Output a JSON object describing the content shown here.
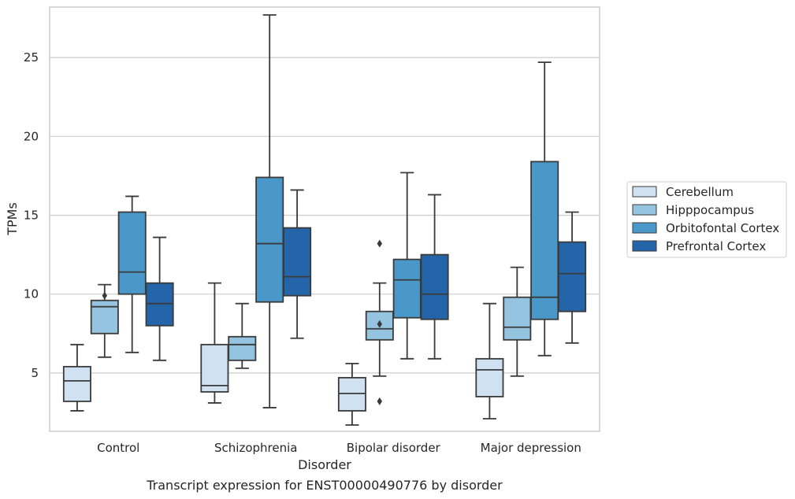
{
  "chart_data": {
    "type": "boxplot",
    "title": "",
    "caption": "Transcript expression for ENST00000490776 by disorder",
    "xlabel": "Disorder",
    "ylabel": "TPMs",
    "ylim": [
      1.3,
      28.2
    ],
    "yticks": [
      5,
      10,
      15,
      20,
      25
    ],
    "grid": "horizontal",
    "legend_position": "right",
    "categories": [
      "Control",
      "Schizophrenia",
      "Bipolar disorder",
      "Major depression"
    ],
    "series": [
      {
        "name": "Cerebellum",
        "color": "#d0e1f2",
        "boxes": [
          {
            "whislo": 2.6,
            "q1": 3.2,
            "med": 4.5,
            "q3": 5.4,
            "whishi": 6.8,
            "fliers": []
          },
          {
            "whislo": 3.1,
            "q1": 3.8,
            "med": 4.2,
            "q3": 6.8,
            "whishi": 10.7,
            "fliers": []
          },
          {
            "whislo": 1.7,
            "q1": 2.6,
            "med": 3.7,
            "q3": 4.7,
            "whishi": 5.6,
            "fliers": []
          },
          {
            "whislo": 2.1,
            "q1": 3.5,
            "med": 5.2,
            "q3": 5.9,
            "whishi": 9.4,
            "fliers": []
          }
        ]
      },
      {
        "name": "Hipppocampus",
        "color": "#94c4df",
        "boxes": [
          {
            "whislo": 6.0,
            "q1": 7.5,
            "med": 9.2,
            "q3": 9.6,
            "whishi": 10.6,
            "fliers": [
              9.9
            ]
          },
          {
            "whislo": 5.3,
            "q1": 5.8,
            "med": 6.8,
            "q3": 7.3,
            "whishi": 9.4,
            "fliers": []
          },
          {
            "whislo": 4.8,
            "q1": 7.1,
            "med": 7.8,
            "q3": 8.9,
            "whishi": 10.7,
            "fliers": [
              8.1,
              13.2,
              3.2
            ]
          },
          {
            "whislo": 4.8,
            "q1": 7.1,
            "med": 7.9,
            "q3": 9.8,
            "whishi": 11.7,
            "fliers": []
          }
        ]
      },
      {
        "name": "Orbitofontal Cortex",
        "color": "#4a98c9",
        "boxes": [
          {
            "whislo": 6.3,
            "q1": 10.0,
            "med": 11.4,
            "q3": 15.2,
            "whishi": 16.2,
            "fliers": []
          },
          {
            "whislo": 2.8,
            "q1": 9.5,
            "med": 13.2,
            "q3": 17.4,
            "whishi": 27.7,
            "fliers": []
          },
          {
            "whislo": 5.9,
            "q1": 8.5,
            "med": 10.9,
            "q3": 12.2,
            "whishi": 17.7,
            "fliers": []
          },
          {
            "whislo": 6.1,
            "q1": 8.4,
            "med": 9.8,
            "q3": 18.4,
            "whishi": 24.7,
            "fliers": []
          }
        ]
      },
      {
        "name": "Prefrontal Cortex",
        "color": "#2465a9",
        "boxes": [
          {
            "whislo": 5.8,
            "q1": 8.0,
            "med": 9.4,
            "q3": 10.7,
            "whishi": 13.6,
            "fliers": []
          },
          {
            "whislo": 7.2,
            "q1": 9.9,
            "med": 11.1,
            "q3": 14.2,
            "whishi": 16.6,
            "fliers": []
          },
          {
            "whislo": 5.9,
            "q1": 8.4,
            "med": 10.0,
            "q3": 12.5,
            "whishi": 16.3,
            "fliers": []
          },
          {
            "whislo": 6.9,
            "q1": 8.9,
            "med": 11.3,
            "q3": 13.3,
            "whishi": 15.2,
            "fliers": []
          }
        ]
      }
    ]
  }
}
